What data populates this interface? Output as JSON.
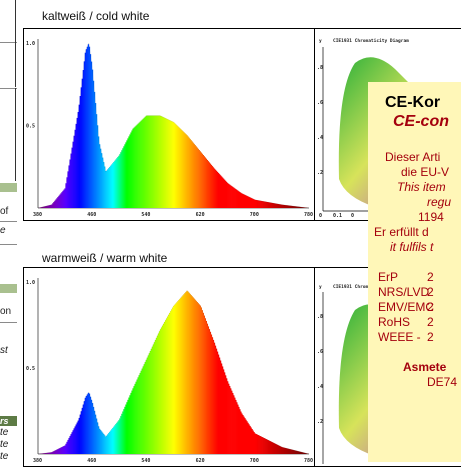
{
  "sidebar": {
    "fragments": [
      "of",
      "e",
      "on",
      "st"
    ],
    "dark_label": "rs",
    "italic_rows": [
      "te",
      "te",
      "te"
    ]
  },
  "sections": [
    {
      "title": "kaltweiß / cold white",
      "y_ticks": [
        "1.0",
        "0.5"
      ],
      "x_ticks": [
        "380",
        "460",
        "540",
        "620",
        "700",
        "780"
      ],
      "cie_title": "CIE1931 Chromaticity Diagram",
      "cie_y_label": "y"
    },
    {
      "title": "warmweiß / warm white",
      "y_ticks": [
        "1.0",
        "0.5"
      ],
      "x_ticks": [
        "380",
        "460",
        "540",
        "620",
        "700",
        "780"
      ],
      "cie_title": "CIE1931 Chromaticity Diagram",
      "cie_y_label": "y"
    }
  ],
  "ce": {
    "title": "CE-Kor",
    "subtitle": "CE-con",
    "lines": [
      "Dieser Arti",
      "die EU-V"
    ],
    "italic_lines": [
      "This item",
      "regu"
    ],
    "number": "1194",
    "fulfills_de": "Er erfüllt d",
    "fulfills_en": "it fulfils t",
    "norms": [
      {
        "name": "ErP",
        "value": "2"
      },
      {
        "name": "NRS/LVD",
        "value": "2"
      },
      {
        "name": "EMV/EMC",
        "value": "2"
      },
      {
        "name": "RoHS",
        "value": "2"
      },
      {
        "name": "WEEE -",
        "value": "2"
      }
    ],
    "company": "Asmete",
    "code": "DE74"
  },
  "chart_data": [
    {
      "type": "area",
      "title": "kaltweiß / cold white",
      "x": [
        380,
        400,
        420,
        440,
        450,
        455,
        460,
        470,
        480,
        500,
        520,
        540,
        560,
        580,
        600,
        620,
        640,
        660,
        680,
        700,
        740,
        780
      ],
      "values": [
        0.0,
        0.02,
        0.12,
        0.6,
        0.95,
        1.0,
        0.85,
        0.4,
        0.22,
        0.32,
        0.48,
        0.56,
        0.56,
        0.52,
        0.44,
        0.34,
        0.24,
        0.15,
        0.09,
        0.05,
        0.02,
        0.0
      ],
      "xlim": [
        380,
        780
      ],
      "ylim": [
        0,
        1.0
      ]
    },
    {
      "type": "area",
      "title": "warmweiß / warm white",
      "x": [
        380,
        400,
        420,
        440,
        450,
        455,
        460,
        470,
        480,
        500,
        520,
        540,
        560,
        580,
        600,
        620,
        640,
        660,
        680,
        700,
        740,
        780
      ],
      "values": [
        0.0,
        0.01,
        0.05,
        0.2,
        0.33,
        0.36,
        0.3,
        0.15,
        0.1,
        0.2,
        0.38,
        0.55,
        0.72,
        0.86,
        0.95,
        0.86,
        0.65,
        0.42,
        0.24,
        0.12,
        0.04,
        0.0
      ],
      "xlim": [
        380,
        780
      ],
      "ylim": [
        0,
        1.0
      ]
    }
  ],
  "colors": {
    "overlay_bg": "#fff7b8",
    "sidebar_green": "#a9c08f",
    "sidebar_dark": "#5d7b45",
    "subtitle": "#a4000d"
  }
}
